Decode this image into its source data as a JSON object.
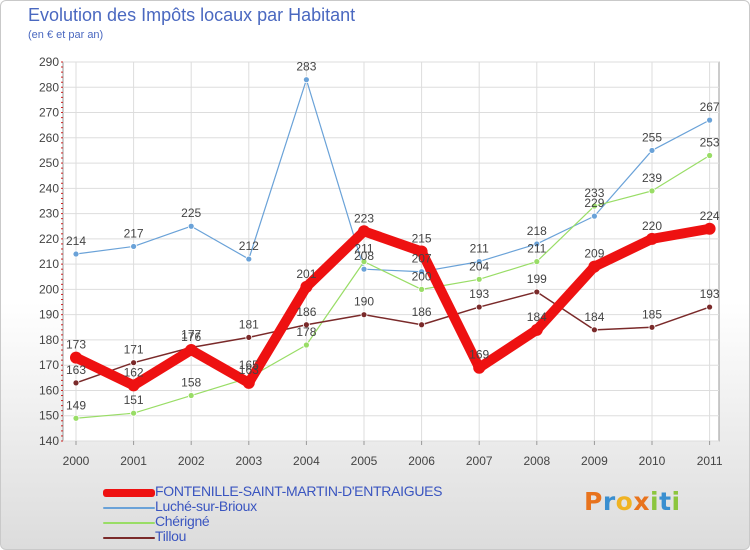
{
  "chart_data": {
    "type": "line",
    "title": "Evolution des Impôts locaux par Habitant",
    "subtitle": "(en € et par an)",
    "x": [
      "2000",
      "2001",
      "2002",
      "2003",
      "2004",
      "2005",
      "2006",
      "2007",
      "2008",
      "2009",
      "2010",
      "2011"
    ],
    "ylim": [
      140,
      290
    ],
    "yticks": [
      140,
      150,
      160,
      170,
      180,
      190,
      200,
      210,
      220,
      230,
      240,
      250,
      260,
      270,
      280,
      290
    ],
    "grid": true,
    "legend_position": "bottom-left",
    "series": [
      {
        "name": "FONTENILLE-SAINT-MARTIN-D'ENTRAIGUES",
        "color": "#ee1111",
        "values": [
          173,
          162,
          176,
          163,
          201,
          223,
          215,
          169,
          184,
          209,
          220,
          224
        ]
      },
      {
        "name": "Luché-sur-Brioux",
        "color": "#6aa2d8",
        "values": [
          214,
          217,
          225,
          212,
          283,
          208,
          207,
          211,
          218,
          229,
          255,
          267
        ]
      },
      {
        "name": "Chérigné",
        "color": "#99dd66",
        "values": [
          149,
          151,
          158,
          165,
          178,
          211,
          200,
          204,
          211,
          233,
          239,
          253
        ]
      },
      {
        "name": "Tillou",
        "color": "#7a2a2a",
        "values": [
          163,
          171,
          177,
          181,
          186,
          190,
          186,
          193,
          199,
          184,
          185,
          193
        ]
      }
    ]
  },
  "brand": {
    "letters": [
      "P",
      "r",
      "o",
      "x",
      "i",
      "t",
      "i"
    ],
    "colors": [
      "#e8731d",
      "#3a8fd0",
      "#f0b323",
      "#e8731d",
      "#8cc63e",
      "#3a8fd0",
      "#8cc63e"
    ]
  }
}
